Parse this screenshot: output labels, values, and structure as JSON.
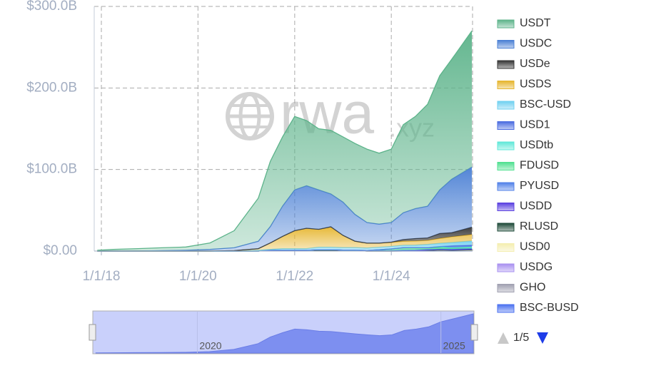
{
  "chart_data": {
    "type": "stacked_area",
    "watermark": [
      "rwa",
      ".xyz"
    ],
    "x": [
      "2017-12-01",
      "2018-04-01",
      "2018-10-01",
      "2019-04-01",
      "2019-10-01",
      "2020-04-01",
      "2020-10-01",
      "2021-04-01",
      "2021-07-01",
      "2021-10-01",
      "2022-01-01",
      "2022-04-01",
      "2022-07-01",
      "2022-10-01",
      "2023-01-01",
      "2023-04-01",
      "2023-07-01",
      "2023-10-01",
      "2024-01-01",
      "2024-04-01",
      "2024-07-01",
      "2024-10-01",
      "2025-01-01",
      "2025-04-01",
      "2025-09-01"
    ],
    "xlim": [
      "2017-11-08",
      "2025-09-06"
    ],
    "xticks": [
      {
        "value": "2018-01-01",
        "label": "1/1/18"
      },
      {
        "value": "2020-01-01",
        "label": "1/1/20"
      },
      {
        "value": "2022-01-01",
        "label": "1/1/22"
      },
      {
        "value": "2024-01-01",
        "label": "1/1/24"
      }
    ],
    "ylim": [
      0,
      300
    ],
    "yticks": [
      {
        "value": 0,
        "label": "$0.00"
      },
      {
        "value": 100,
        "label": "$100.0B"
      },
      {
        "value": 200,
        "label": "$200.0B"
      },
      {
        "value": 300,
        "label": "$300.0B"
      }
    ],
    "grid": true,
    "legend_position": "right",
    "legend_page": "1/5",
    "slider_labels": [
      {
        "value": "2020-01-01",
        "label": "2020"
      },
      {
        "value": "2025-01-01",
        "label": "2025"
      }
    ],
    "series": [
      {
        "name": "USDT",
        "color": "#5cb38a",
        "values": [
          1,
          2,
          3,
          3.5,
          4,
          8,
          21,
          53,
          80,
          85,
          90,
          80,
          75,
          78,
          80,
          87,
          90,
          87,
          90,
          108,
          113,
          125,
          140,
          147,
          167
        ]
      },
      {
        "name": "USDC",
        "color": "#4a7fd4",
        "values": [
          0,
          0,
          0,
          0.5,
          1,
          2,
          3.5,
          9,
          20,
          37,
          50,
          52,
          48.3,
          40.3,
          40.8,
          32.8,
          25.3,
          23.3,
          24.1,
          32.9,
          36.7,
          38.9,
          53.5,
          65.5,
          73.7
        ]
      },
      {
        "name": "USDe",
        "color": "#333333",
        "values": [
          0,
          0,
          0,
          0,
          0,
          0,
          0,
          0,
          0,
          0,
          0,
          0,
          0,
          0,
          0,
          0,
          0,
          0,
          0.2,
          2,
          3,
          3,
          6,
          5,
          9
        ]
      },
      {
        "name": "USDS",
        "color": "#e6b52e",
        "values": [
          0,
          0,
          0,
          0,
          0,
          0,
          0.5,
          2,
          8,
          15,
          22,
          25,
          22,
          25,
          15,
          8,
          6,
          5,
          5,
          5,
          5,
          5,
          6,
          7,
          8
        ]
      },
      {
        "name": "BSC-USD",
        "color": "#6fd0f0",
        "values": [
          0,
          0,
          0,
          0,
          0,
          0,
          0,
          1,
          1,
          2,
          2,
          2,
          3,
          3,
          3,
          3,
          3,
          3,
          3,
          3,
          3,
          4,
          4,
          4,
          5
        ]
      },
      {
        "name": "USD1",
        "color": "#4a6be0",
        "values": [
          0,
          0,
          0,
          0,
          0,
          0,
          0,
          0,
          0,
          0,
          0,
          0,
          0,
          0,
          0,
          0,
          0,
          0,
          0,
          0,
          0,
          0,
          0,
          2,
          2
        ]
      },
      {
        "name": "USDtb",
        "color": "#5fe8d8",
        "values": [
          0,
          0,
          0,
          0,
          0,
          0,
          0,
          0,
          0,
          0,
          0,
          0,
          0,
          0,
          0,
          0,
          0,
          0,
          0,
          0,
          0,
          0,
          1,
          1,
          1
        ]
      },
      {
        "name": "FDUSD",
        "color": "#50e090",
        "values": [
          0,
          0,
          0,
          0,
          0,
          0,
          0,
          0,
          0,
          0,
          0,
          0,
          0,
          0,
          0,
          0,
          0,
          1,
          2,
          3,
          3,
          2,
          2,
          1,
          1
        ]
      },
      {
        "name": "PYUSD",
        "color": "#5080e8",
        "values": [
          0,
          0,
          0,
          0,
          0,
          0,
          0,
          0,
          0,
          0,
          0,
          0,
          0,
          0,
          0,
          0,
          0,
          0,
          0,
          0.3,
          0.5,
          0.7,
          0.5,
          0.8,
          1
        ]
      },
      {
        "name": "USDD",
        "color": "#5a40e0",
        "values": [
          0,
          0,
          0,
          0,
          0,
          0,
          0,
          0,
          0,
          0,
          0,
          0,
          0.7,
          0.7,
          0.7,
          0.7,
          0.7,
          0.7,
          0.7,
          0.7,
          0.7,
          0.7,
          0.7,
          0.7,
          0.7
        ]
      },
      {
        "name": "RLUSD",
        "color": "#1e4a38",
        "values": [
          0,
          0,
          0,
          0,
          0,
          0,
          0,
          0,
          0,
          0,
          0,
          0,
          0,
          0,
          0,
          0,
          0,
          0,
          0,
          0,
          0,
          0,
          0.1,
          0.2,
          0.5
        ]
      },
      {
        "name": "USD0",
        "color": "#f4eeb0",
        "values": [
          0,
          0,
          0,
          0,
          0,
          0,
          0,
          0,
          0,
          0,
          0,
          0,
          0,
          0,
          0,
          0,
          0,
          0,
          0,
          0,
          0,
          0.5,
          1,
          0.6,
          0.5
        ]
      },
      {
        "name": "USDG",
        "color": "#a890f0",
        "values": [
          0,
          0,
          0,
          0,
          0,
          0,
          0,
          0,
          0,
          0,
          0,
          0,
          0,
          0,
          0,
          0,
          0,
          0,
          0,
          0,
          0,
          0,
          0,
          0,
          0.3
        ]
      },
      {
        "name": "GHO",
        "color": "#a0a0b0",
        "values": [
          0,
          0,
          0,
          0,
          0,
          0,
          0,
          0,
          0,
          0,
          0,
          0,
          0,
          0,
          0,
          0,
          0,
          0,
          0,
          0.1,
          0.1,
          0.2,
          0.2,
          0.2,
          0.3
        ]
      },
      {
        "name": "BSC-BUSD",
        "color": "#4a70f0",
        "values": [
          0,
          0,
          0,
          0,
          0,
          0,
          0,
          0,
          1,
          1,
          1,
          1,
          1,
          1,
          0.5,
          0.5,
          0,
          0,
          0,
          0,
          0,
          0,
          0,
          0,
          0
        ]
      }
    ]
  }
}
